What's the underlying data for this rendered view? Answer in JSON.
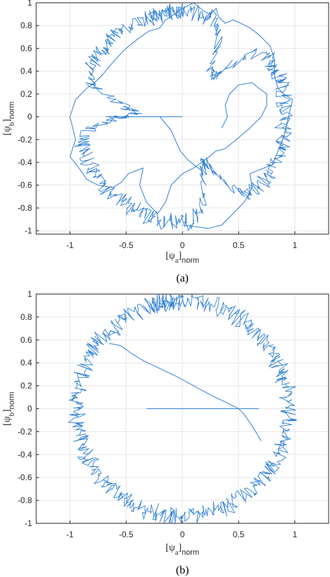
{
  "chart_data": [
    {
      "type": "line",
      "caption": "(a)",
      "xlabel": "[ψa]norm",
      "ylabel": "[ψb]norm",
      "xlim": [
        -1.3,
        1.3
      ],
      "ylim": [
        -1.03,
        1.0
      ],
      "xticks": [
        -1,
        -0.5,
        0,
        0.5,
        1
      ],
      "xtick_labels": [
        "-1",
        "-0.5",
        "0",
        "0.5",
        "1"
      ],
      "yticks": [
        1,
        0.8,
        0.6,
        0.4,
        0.2,
        0,
        -0.2,
        -0.4,
        -0.6,
        -0.8,
        -1
      ],
      "ytick_labels": [
        "1",
        "0.8",
        "0.6",
        "0.4",
        "0.2",
        "0",
        "-0.2",
        "-0.4",
        "-0.6",
        "-0.8",
        "-1"
      ],
      "grid": true,
      "line_color": "#2f7fd6",
      "series": [
        {
          "x": [
            -0.68,
            0.0,
            -0.2,
            -0.1,
            -0.02,
            0.05,
            0.1,
            0.18
          ],
          "y": [
            0.0,
            0.0,
            0.0,
            -0.12,
            -0.3,
            -0.38,
            -0.42,
            -0.48
          ]
        },
        {
          "x": [
            0.0,
            0.23,
            0.35,
            0.45,
            0.55,
            0.62,
            0.6,
            0.8,
            0.85,
            0.9,
            0.98,
            0.9,
            0.85,
            0.82,
            0.82,
            0.78,
            0.68,
            0.6,
            0.52,
            0.45,
            0.38,
            0.32,
            0.3,
            0.25,
            0.2,
            0.1,
            0.0,
            -0.1,
            -0.15,
            -0.2,
            -0.3,
            -0.4,
            -0.5,
            -0.6,
            -0.7,
            -0.78,
            -0.85,
            -0.95,
            -1.0,
            -0.95,
            -1.0,
            -0.92,
            -0.85,
            -0.75,
            -0.62,
            -0.55,
            -0.48,
            -0.35,
            -0.38,
            -0.32,
            -0.22,
            -0.15,
            -0.1,
            0.0,
            0.1,
            0.2,
            0.3,
            0.38,
            0.48,
            0.6,
            0.7,
            0.75,
            0.75,
            0.68,
            0.62,
            0.5,
            0.42,
            0.38,
            0.4,
            0.35
          ],
          "y": [
            -0.95,
            -0.98,
            -0.95,
            -0.85,
            -0.75,
            -0.62,
            -0.5,
            -0.42,
            -0.3,
            -0.18,
            0.15,
            0.2,
            0.25,
            0.35,
            0.5,
            0.62,
            0.72,
            0.78,
            0.82,
            0.85,
            0.82,
            0.88,
            0.95,
            0.9,
            0.92,
            1.0,
            0.95,
            0.88,
            0.85,
            0.78,
            0.75,
            0.68,
            0.6,
            0.5,
            0.38,
            0.3,
            0.25,
            0.15,
            0.0,
            -0.2,
            -0.35,
            -0.45,
            -0.55,
            -0.6,
            -0.62,
            -0.58,
            -0.5,
            -0.45,
            -0.6,
            -0.75,
            -0.85,
            -0.75,
            -0.6,
            -0.5,
            -0.45,
            -0.38,
            -0.3,
            -0.28,
            -0.2,
            -0.1,
            0.0,
            0.1,
            0.2,
            0.25,
            0.3,
            0.28,
            0.2,
            0.1,
            0.0,
            -0.1
          ]
        }
      ]
    },
    {
      "type": "line",
      "caption": "(b)",
      "xlabel": "[ψa]norm",
      "ylabel": "[ψb]norm",
      "xlim": [
        -1.3,
        1.3
      ],
      "ylim": [
        -1.0,
        1.0
      ],
      "xticks": [
        -1,
        -0.5,
        0,
        0.5,
        1
      ],
      "xtick_labels": [
        "-1",
        "-0.5",
        "0",
        "0.5",
        "1"
      ],
      "yticks": [
        1,
        0.8,
        0.6,
        0.4,
        0.2,
        0,
        -0.2,
        -0.4,
        -0.6,
        -0.8,
        -1
      ],
      "ytick_labels": [
        "1",
        "0.8",
        "0.6",
        "0.4",
        "0.2",
        "0",
        "-0.2",
        "-0.4",
        "-0.6",
        "-0.8",
        "-1"
      ],
      "grid": true,
      "line_color": "#2f7fd6",
      "series": [
        {
          "x": [
            -0.32,
            0.68
          ],
          "y": [
            0.0,
            0.0
          ]
        },
        {
          "x": [
            -0.65,
            -0.55,
            -0.45,
            -0.35,
            -0.2,
            -0.05,
            0.1,
            0.25,
            0.4,
            0.5,
            0.55,
            0.62,
            0.7
          ],
          "y": [
            0.57,
            0.55,
            0.48,
            0.42,
            0.35,
            0.28,
            0.2,
            0.12,
            0.05,
            0.0,
            -0.05,
            -0.15,
            -0.28
          ]
        }
      ]
    }
  ]
}
